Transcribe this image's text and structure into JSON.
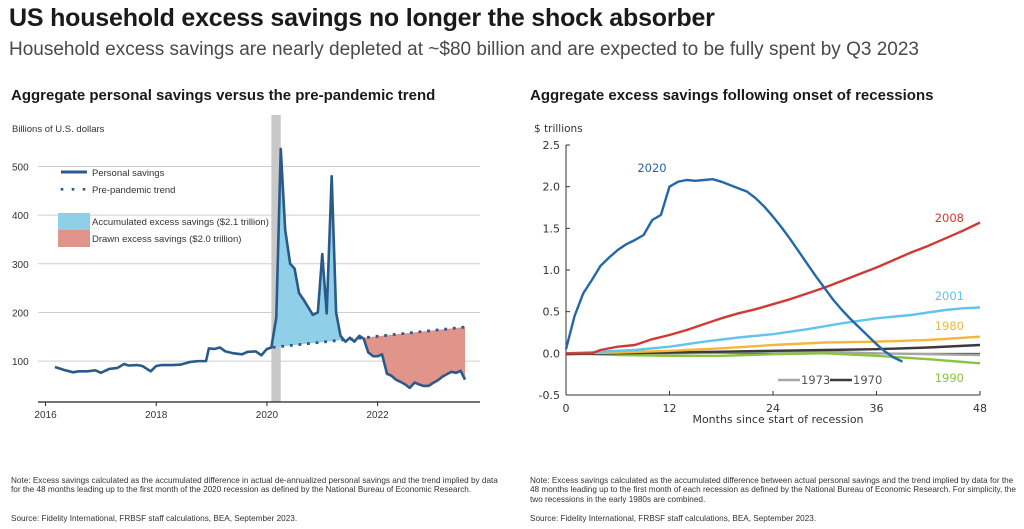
{
  "header": {
    "title": "US household excess savings no longer the shock absorber",
    "subtitle": "Household excess savings are nearly depleted at ~$80 billion and are expected to be fully spent by Q3 2023"
  },
  "notes": {
    "left_note": "Note: Excess savings calculated as the accumulated difference in actual de-annualized personal savings and the trend implied by data for the 48 months leading up to the first month of the 2020 recession as defined by the National Bureau of Economic Research.",
    "left_source": "Source: Fidelity International, FRBSF staff calculations, BEA, September 2023.",
    "right_note": "Note: Excess savings calculated as the accumulated difference between actual personal savings and the trend implied by data for the 48 months leading up to the first month of each recession as defined by the National Bureau of Economic Research. For simplicity, the two recessions in the early 1980s are combined.",
    "right_source": "Source: Fidelity International, FRBSF staff calculations, BEA, September 2023."
  },
  "colors": {
    "personal_savings": "#2a5a8a",
    "accumulated_fill": "#8fd0e8",
    "drawn_fill": "#e0948a",
    "recession_band": "#c8c8c8",
    "r2020": "#2368a8",
    "r2008": "#d03a35",
    "r2001": "#62c4ec",
    "r1980": "#f5b73b",
    "r1970": "#3a3a3a",
    "r1973": "#a6a6a6",
    "r1990": "#8ac43f"
  },
  "chart_data": [
    {
      "type": "area",
      "title": "Aggregate personal savings versus the pre-pandemic trend",
      "ylabel": "Billions of U.S. dollars",
      "xlabel": "",
      "ylim": [
        16,
        540
      ],
      "xlim": [
        2015.9,
        2023.85
      ],
      "yticks": [
        100,
        200,
        300,
        400,
        500
      ],
      "xticks": [
        2016,
        2018,
        2020,
        2022
      ],
      "grid": true,
      "legend_position": "top-left",
      "legend": [
        {
          "label": "Personal savings",
          "kind": "line"
        },
        {
          "label": "Pre-pandemic trend",
          "kind": "dotted"
        },
        {
          "label": "Accumulated excess savings ($2.1 trillion)",
          "kind": "fill-blue"
        },
        {
          "label": "Drawn excess savings ($2.0 trillion)",
          "kind": "fill-red"
        }
      ],
      "recession_band": [
        2020.08,
        2020.25
      ],
      "series": [
        {
          "name": "Personal savings",
          "x": [
            2016.17,
            2016.33,
            2016.5,
            2016.6,
            2016.75,
            2016.9,
            2017.0,
            2017.15,
            2017.3,
            2017.42,
            2017.5,
            2017.65,
            2017.75,
            2017.9,
            2018.0,
            2018.1,
            2018.3,
            2018.45,
            2018.6,
            2018.75,
            2018.9,
            2018.95,
            2019.05,
            2019.15,
            2019.25,
            2019.4,
            2019.55,
            2019.65,
            2019.8,
            2019.9,
            2020.0,
            2020.08,
            2020.17,
            2020.25,
            2020.33,
            2020.42,
            2020.5,
            2020.58,
            2020.67,
            2020.75,
            2020.83,
            2020.92,
            2021.0,
            2021.08,
            2021.17,
            2021.25,
            2021.33,
            2021.42,
            2021.5,
            2021.58,
            2021.67,
            2021.75,
            2021.83,
            2021.92,
            2022.0,
            2022.08,
            2022.17,
            2022.25,
            2022.33,
            2022.42,
            2022.5,
            2022.58,
            2022.67,
            2022.75,
            2022.83,
            2022.92,
            2023.0,
            2023.08,
            2023.17,
            2023.25,
            2023.33,
            2023.42,
            2023.5,
            2023.58
          ],
          "values": [
            88,
            82,
            77,
            79,
            79,
            81,
            76,
            84,
            86,
            94,
            91,
            92,
            90,
            79,
            90,
            92,
            92,
            93,
            98,
            100,
            100,
            126,
            125,
            128,
            120,
            116,
            114,
            119,
            120,
            112,
            125,
            128,
            190,
            536,
            370,
            300,
            290,
            240,
            225,
            210,
            195,
            200,
            320,
            198,
            480,
            200,
            152,
            140,
            148,
            140,
            152,
            146,
            118,
            110,
            110,
            114,
            74,
            70,
            62,
            57,
            52,
            45,
            56,
            52,
            49,
            49,
            55,
            60,
            68,
            73,
            78,
            76,
            80,
            62
          ]
        },
        {
          "name": "Pre-pandemic trend",
          "x": [
            2020.08,
            2023.58
          ],
          "values": [
            128,
            170
          ]
        }
      ]
    },
    {
      "type": "line",
      "title": "Aggregate excess savings following onset of recessions",
      "ylabel": "$ trillions",
      "xlabel": "Months since start of recession",
      "ylim": [
        -0.5,
        2.5
      ],
      "xlim": [
        0,
        48
      ],
      "yticks": [
        "2.5",
        "2.0",
        "1.5",
        "1.0",
        "0.5",
        "0.0",
        "-0.5"
      ],
      "xticks": [
        "0",
        "12",
        "24",
        "36",
        "48"
      ],
      "grid": false,
      "series": [
        {
          "name": "2020",
          "x": [
            0,
            1,
            2,
            3,
            4,
            5,
            6,
            7,
            8,
            9,
            10,
            11,
            12,
            13,
            14,
            15,
            16,
            17,
            18,
            19,
            20,
            21,
            22,
            23,
            24,
            25,
            26,
            27,
            28,
            29,
            30,
            31,
            32,
            33,
            34,
            35,
            36,
            37,
            38,
            39
          ],
          "values": [
            0.05,
            0.45,
            0.72,
            0.88,
            1.05,
            1.15,
            1.24,
            1.31,
            1.36,
            1.42,
            1.6,
            1.66,
            2.0,
            2.06,
            2.08,
            2.07,
            2.08,
            2.09,
            2.06,
            2.02,
            1.98,
            1.94,
            1.86,
            1.76,
            1.64,
            1.51,
            1.37,
            1.22,
            1.07,
            0.92,
            0.78,
            0.64,
            0.52,
            0.41,
            0.31,
            0.21,
            0.11,
            0.02,
            -0.05,
            -0.1
          ]
        },
        {
          "name": "2008",
          "x": [
            0,
            3,
            4,
            6,
            8,
            10,
            12,
            14,
            16,
            18,
            20,
            22,
            24,
            26,
            28,
            30,
            32,
            34,
            36,
            38,
            40,
            42,
            44,
            46,
            48
          ],
          "values": [
            0,
            0,
            0.04,
            0.08,
            0.1,
            0.17,
            0.22,
            0.28,
            0.35,
            0.42,
            0.48,
            0.53,
            0.59,
            0.65,
            0.72,
            0.79,
            0.87,
            0.95,
            1.03,
            1.12,
            1.21,
            1.29,
            1.38,
            1.47,
            1.57
          ]
        },
        {
          "name": "2001",
          "x": [
            0,
            4,
            8,
            12,
            16,
            20,
            24,
            28,
            32,
            36,
            40,
            44,
            46,
            48
          ],
          "values": [
            0,
            0.02,
            0.04,
            0.08,
            0.14,
            0.19,
            0.23,
            0.29,
            0.36,
            0.42,
            0.46,
            0.52,
            0.54,
            0.55
          ]
        },
        {
          "name": "1980",
          "x": [
            0,
            6,
            12,
            18,
            24,
            30,
            36,
            42,
            48
          ],
          "values": [
            0,
            0.01,
            0.03,
            0.06,
            0.1,
            0.13,
            0.14,
            0.16,
            0.2
          ]
        },
        {
          "name": "1970",
          "x": [
            0,
            6,
            12,
            18,
            24,
            30,
            36,
            42,
            48
          ],
          "values": [
            -0.01,
            0,
            0.01,
            0.02,
            0.03,
            0.04,
            0.05,
            0.07,
            0.1
          ]
        },
        {
          "name": "1973",
          "x": [
            0,
            6,
            12,
            18,
            24,
            30,
            36,
            42,
            48
          ],
          "values": [
            0,
            0,
            0,
            0.01,
            0.02,
            0.02,
            0.0,
            -0.01,
            -0.02
          ]
        },
        {
          "name": "1990",
          "x": [
            0,
            6,
            12,
            18,
            24,
            30,
            36,
            42,
            48
          ],
          "values": [
            0,
            -0.02,
            -0.03,
            -0.03,
            -0.01,
            0.0,
            -0.03,
            -0.07,
            -0.12
          ]
        }
      ],
      "annotations": [
        {
          "text": "2020",
          "series": "2020"
        },
        {
          "text": "2008",
          "series": "2008"
        },
        {
          "text": "2001",
          "series": "2001"
        },
        {
          "text": "1980",
          "series": "1980"
        },
        {
          "text": "1990",
          "series": "1990"
        },
        {
          "text": "1973",
          "series": "1973",
          "legend": true
        },
        {
          "text": "1970",
          "series": "1970",
          "legend": true
        }
      ]
    }
  ]
}
